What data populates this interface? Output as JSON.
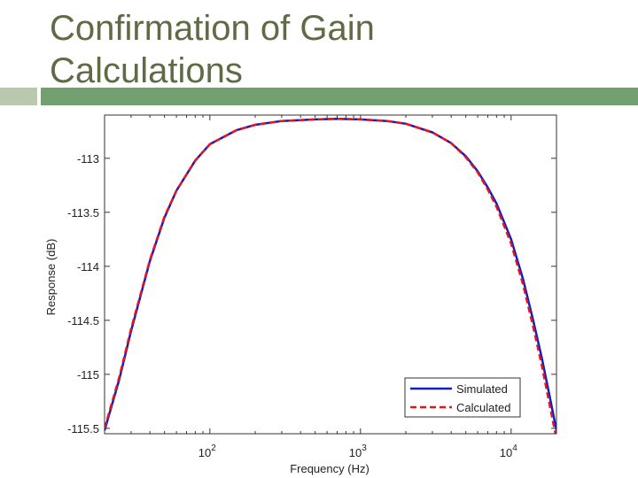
{
  "slide": {
    "title_line1": "Confirmation of Gain",
    "title_line2": "Calculations"
  },
  "colors": {
    "title": "#5f6b45",
    "accent_bar_light": "#b9c9ad",
    "accent_bar_dark": "#73a070",
    "series_simulated": "#0a1ecc",
    "series_calculated": "#e8141c"
  },
  "chart_data": {
    "type": "line",
    "xlabel": "Frequency (Hz)",
    "ylabel": "Response (dB)",
    "x_scale": "log",
    "xlim": [
      20,
      20000
    ],
    "ylim": [
      -115.55,
      -112.6
    ],
    "x_ticks": [
      {
        "value": 100,
        "base": "10",
        "exp": "2"
      },
      {
        "value": 1000,
        "base": "10",
        "exp": "3"
      },
      {
        "value": 10000,
        "base": "10",
        "exp": "4"
      }
    ],
    "y_ticks": [
      -113,
      -113.5,
      -114,
      -114.5,
      -115,
      -115.5
    ],
    "y_tick_labels": [
      "-113",
      "-113.5",
      "-114",
      "-114.5",
      "-115",
      "-115.5"
    ],
    "grid": false,
    "legend_position": "bottom-right",
    "series": [
      {
        "name": "Simulated",
        "style": "solid",
        "x": [
          20,
          25,
          30,
          40,
          50,
          60,
          80,
          100,
          150,
          200,
          300,
          500,
          700,
          1000,
          1500,
          2000,
          3000,
          4000,
          5000,
          6000,
          7000,
          8000,
          10000,
          12000,
          14000,
          16000,
          18000,
          20000
        ],
        "y": [
          -115.52,
          -115.05,
          -114.6,
          -113.95,
          -113.55,
          -113.3,
          -113.02,
          -112.87,
          -112.74,
          -112.69,
          -112.655,
          -112.64,
          -112.635,
          -112.64,
          -112.655,
          -112.68,
          -112.76,
          -112.86,
          -112.98,
          -113.12,
          -113.27,
          -113.42,
          -113.75,
          -114.12,
          -114.5,
          -114.85,
          -115.2,
          -115.52
        ]
      },
      {
        "name": "Calculated",
        "style": "dashed",
        "x": [
          20,
          25,
          30,
          40,
          50,
          60,
          80,
          100,
          150,
          200,
          300,
          500,
          700,
          1000,
          1500,
          2000,
          3000,
          4000,
          5000,
          6000,
          7000,
          8000,
          10000,
          12000,
          14000,
          16000,
          18000,
          20000
        ],
        "y": [
          -115.5,
          -115.03,
          -114.58,
          -113.94,
          -113.54,
          -113.3,
          -113.02,
          -112.87,
          -112.74,
          -112.69,
          -112.655,
          -112.64,
          -112.635,
          -112.64,
          -112.655,
          -112.68,
          -112.76,
          -112.86,
          -112.99,
          -113.13,
          -113.29,
          -113.45,
          -113.79,
          -114.17,
          -114.56,
          -114.92,
          -115.28,
          -115.6
        ]
      }
    ]
  }
}
